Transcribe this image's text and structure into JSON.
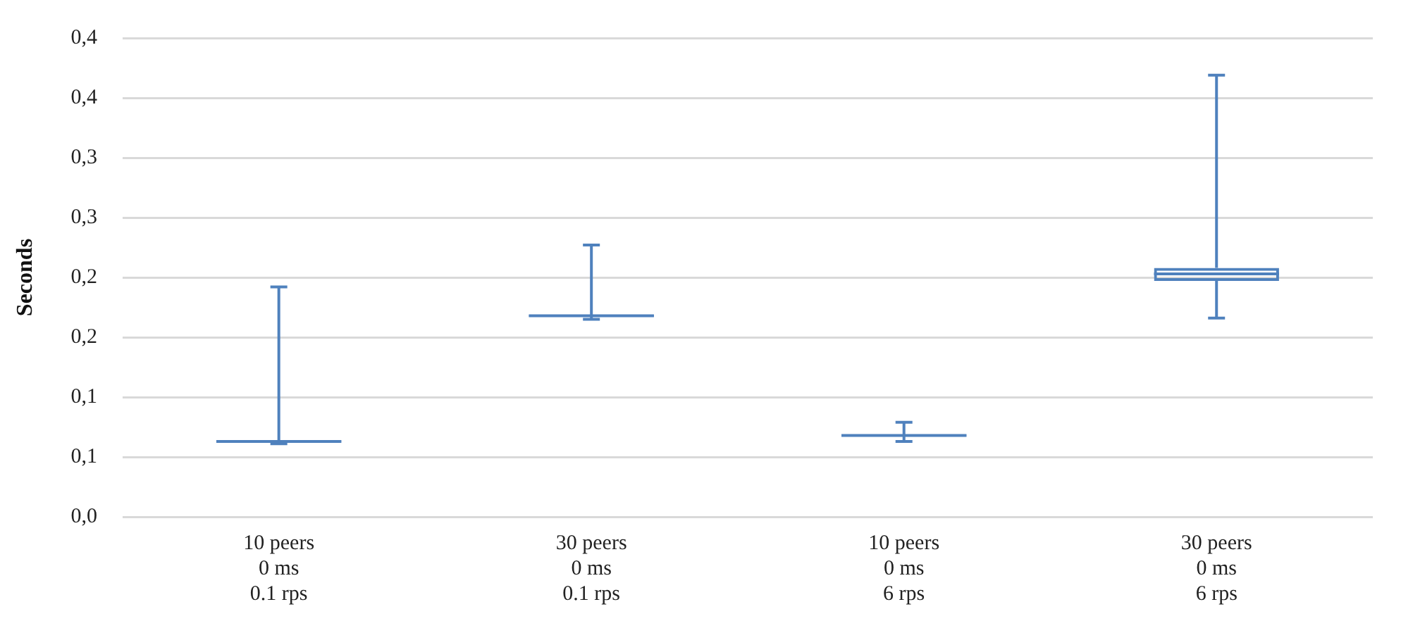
{
  "chart_data": {
    "type": "box",
    "ylabel": "Seconds",
    "categories": [
      "10 peers\n0 ms\n0.1 rps",
      "30 peers\n0 ms\n0.1 rps",
      "10 peers\n0 ms\n6 rps",
      "30 peers\n0 ms\n6 rps"
    ],
    "series": [
      {
        "color": "#4f81bd",
        "boxes": [
          {
            "low": 0.061,
            "q1": 0.062,
            "median": 0.063,
            "q3": 0.064,
            "high": 0.192
          },
          {
            "low": 0.165,
            "q1": 0.167,
            "median": 0.168,
            "q3": 0.169,
            "high": 0.227
          },
          {
            "low": 0.063,
            "q1": 0.067,
            "median": 0.068,
            "q3": 0.069,
            "high": 0.079
          },
          {
            "low": 0.166,
            "q1": 0.197,
            "median": 0.203,
            "q3": 0.208,
            "high": 0.369
          }
        ]
      }
    ],
    "ylim": [
      0,
      0.4
    ],
    "yticks": [
      {
        "value": 0,
        "label": "0,0"
      },
      {
        "value": 0.05,
        "label": "0,1"
      },
      {
        "value": 0.1,
        "label": "0,1"
      },
      {
        "value": 0.15,
        "label": "0,2"
      },
      {
        "value": 0.2,
        "label": "0,2"
      },
      {
        "value": 0.25,
        "label": "0,3"
      },
      {
        "value": 0.3,
        "label": "0,3"
      },
      {
        "value": 0.35,
        "label": "0,4"
      },
      {
        "value": 0.4,
        "label": "0,4"
      }
    ],
    "grid": "y",
    "legend": false
  }
}
